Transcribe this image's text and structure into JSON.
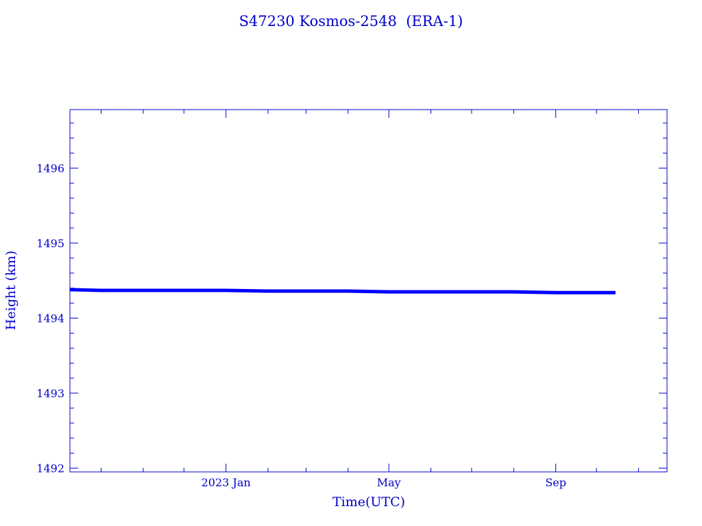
{
  "chart_data": {
    "type": "line",
    "title": "S47230 Kosmos-2548  (ERA-1)",
    "xlabel": "Time(UTC)",
    "ylabel": "Height (km)",
    "xlim": [
      "2022-09-08",
      "2023-11-22"
    ],
    "ylim": [
      1491.95,
      1496.78
    ],
    "yticks": [
      1492,
      1493,
      1494,
      1495,
      1496
    ],
    "ytick_labels": [
      "1492",
      "1493",
      "1494",
      "1495",
      "1496"
    ],
    "xticks": [
      {
        "date": "2023-01-01",
        "label": "2023 Jan"
      },
      {
        "date": "2023-05-01",
        "label": "May"
      },
      {
        "date": "2023-09-01",
        "label": "Sep"
      }
    ],
    "grid": false,
    "colors": {
      "axis": "#0000cc",
      "series": "#0000ff"
    },
    "series": [
      {
        "x": [
          "2022-09-08",
          "2022-10-01",
          "2022-11-01",
          "2022-12-01",
          "2023-01-01",
          "2023-02-01",
          "2023-03-01",
          "2023-04-01",
          "2023-05-01",
          "2023-06-01",
          "2023-07-01",
          "2023-08-01",
          "2023-09-01",
          "2023-10-01",
          "2023-10-15"
        ],
        "y": [
          1494.38,
          1494.37,
          1494.37,
          1494.37,
          1494.37,
          1494.36,
          1494.36,
          1494.36,
          1494.35,
          1494.35,
          1494.35,
          1494.35,
          1494.34,
          1494.34,
          1494.34
        ]
      }
    ]
  }
}
